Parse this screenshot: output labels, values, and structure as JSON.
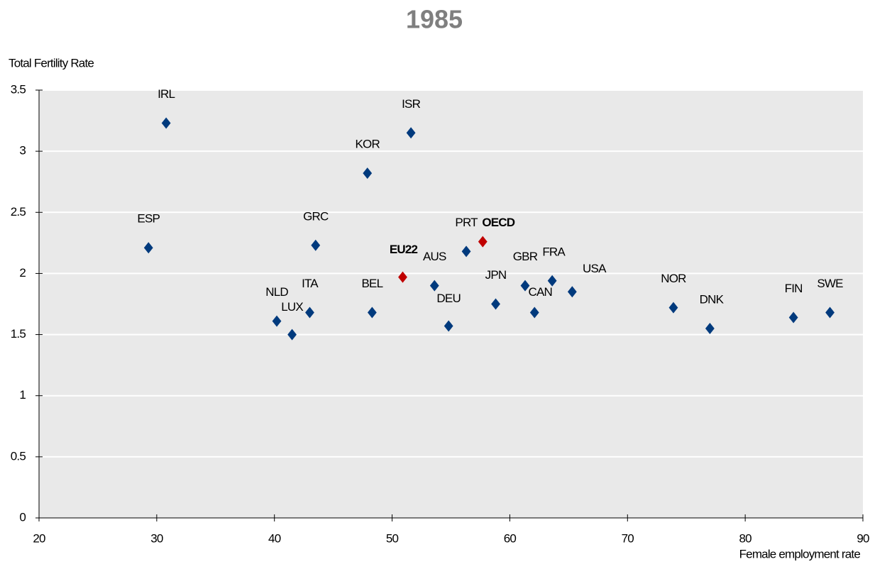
{
  "chart_data": {
    "type": "scatter",
    "title": "1985",
    "ylabel": "Total Fertility Rate",
    "xlabel": "Female employment rate",
    "xlim": [
      20,
      90
    ],
    "xticks": [
      20,
      30,
      40,
      50,
      60,
      70,
      80,
      90
    ],
    "ylim": [
      0,
      3.5
    ],
    "yticks": [
      0,
      0.5,
      1,
      1.5,
      2,
      2.5,
      3,
      3.5
    ],
    "grid": true,
    "color": "#003a7d",
    "labels": [
      "IRL",
      "ESP",
      "NLD",
      "LUX",
      "ITA",
      "GRC",
      "KOR",
      "BEL",
      "EU22",
      "ISR",
      "AUS",
      "DEU",
      "PRT",
      "OECD",
      "JPN",
      "GBR",
      "CAN",
      "FRA",
      "USA",
      "NOR",
      "DNK",
      "FIN",
      "SWE"
    ],
    "x": [
      30.8,
      29.3,
      40.2,
      41.5,
      43.0,
      43.5,
      47.9,
      48.3,
      50.9,
      51.6,
      53.6,
      54.8,
      56.3,
      57.7,
      58.8,
      61.3,
      62.1,
      63.6,
      65.3,
      73.9,
      77.0,
      84.1,
      87.2
    ],
    "y": [
      3.23,
      2.21,
      1.61,
      1.5,
      1.68,
      2.23,
      2.82,
      1.68,
      1.97,
      3.15,
      1.9,
      1.57,
      2.18,
      2.26,
      1.75,
      1.9,
      1.68,
      1.94,
      1.85,
      1.72,
      1.55,
      1.64,
      1.68
    ],
    "colors": [
      "#003a7d",
      "#003a7d",
      "#003a7d",
      "#003a7d",
      "#003a7d",
      "#003a7d",
      "#003a7d",
      "#003a7d",
      "#c00000",
      "#003a7d",
      "#003a7d",
      "#003a7d",
      "#003a7d",
      "#c00000",
      "#003a7d",
      "#003a7d",
      "#003a7d",
      "#003a7d",
      "#003a7d",
      "#003a7d",
      "#003a7d",
      "#003a7d",
      "#003a7d"
    ]
  }
}
